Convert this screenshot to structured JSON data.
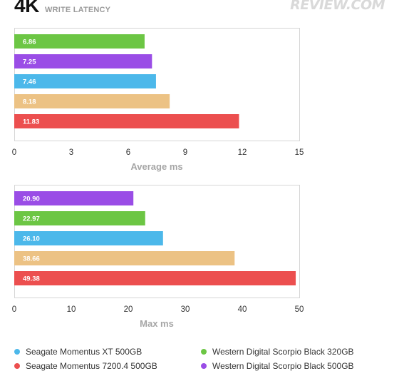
{
  "header": {
    "title": "4K",
    "subtitle": "WRITE LATENCY",
    "logo_text": "REVIEW.COM"
  },
  "colors": {
    "seagate_xt": "#4cb8ea",
    "seagate_7200": "#ec4f4f",
    "wd_320": "#6cc644",
    "wd_500": "#9a4de6",
    "tan": "#ecc284"
  },
  "chart_data": [
    {
      "type": "bar",
      "orientation": "horizontal",
      "xlabel": "Average ms",
      "xlim": [
        0,
        15
      ],
      "ticks": [
        0,
        3,
        6,
        9,
        12,
        15
      ],
      "bars": [
        {
          "value": 6.86,
          "label": "6.86",
          "color": "#6cc644"
        },
        {
          "value": 7.25,
          "label": "7.25",
          "color": "#9a4de6"
        },
        {
          "value": 7.46,
          "label": "7.46",
          "color": "#4cb8ea"
        },
        {
          "value": 8.18,
          "label": "8.18",
          "color": "#ecc284"
        },
        {
          "value": 11.83,
          "label": "11.83",
          "color": "#ec4f4f"
        }
      ]
    },
    {
      "type": "bar",
      "orientation": "horizontal",
      "xlabel": "Max ms",
      "xlim": [
        0,
        50
      ],
      "ticks": [
        0,
        10,
        20,
        30,
        40,
        50
      ],
      "bars": [
        {
          "value": 20.9,
          "label": "20.90",
          "color": "#9a4de6"
        },
        {
          "value": 22.97,
          "label": "22.97",
          "color": "#6cc644"
        },
        {
          "value": 26.1,
          "label": "26.10",
          "color": "#4cb8ea"
        },
        {
          "value": 38.66,
          "label": "38.66",
          "color": "#ecc284"
        },
        {
          "value": 49.38,
          "label": "49.38",
          "color": "#ec4f4f"
        }
      ]
    }
  ],
  "legend": [
    {
      "label": "Seagate Momentus XT 500GB",
      "color": "#4cb8ea"
    },
    {
      "label": "Western Digital Scorpio Black 320GB",
      "color": "#6cc644"
    },
    {
      "label": "Seagate Momentus 7200.4 500GB",
      "color": "#ec4f4f"
    },
    {
      "label": "Western Digital Scorpio Black 500GB",
      "color": "#9a4de6"
    }
  ]
}
